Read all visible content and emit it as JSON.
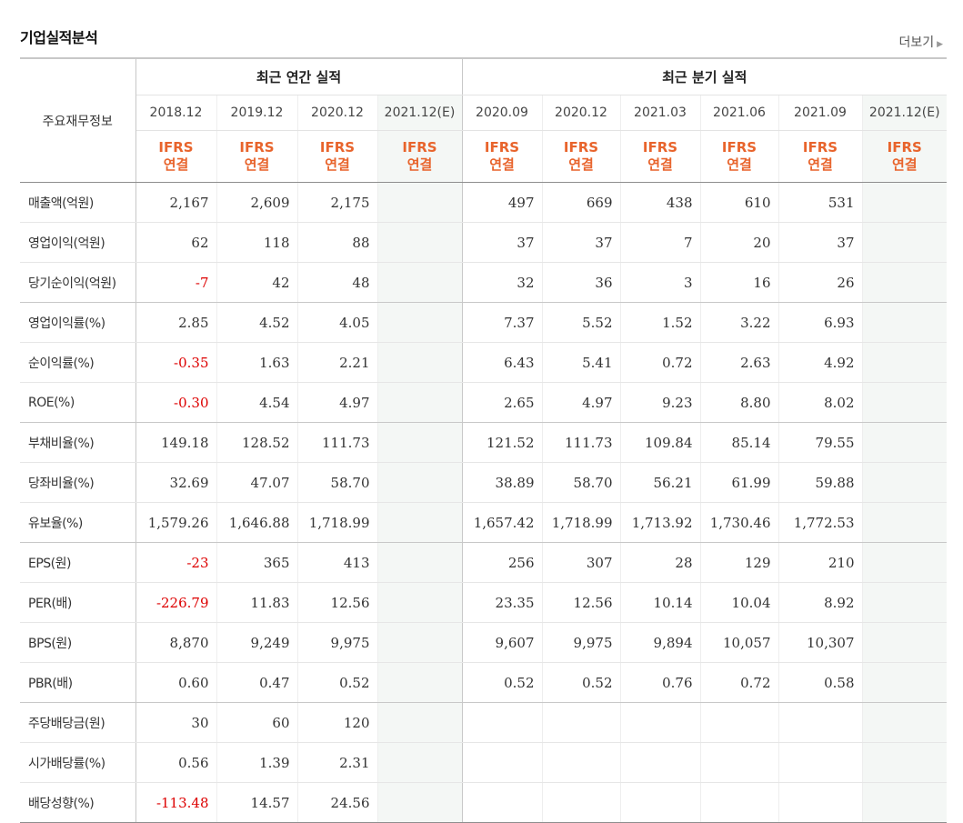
{
  "section_title": "기업실적분석",
  "more_label": "더보기",
  "header": {
    "label": "주요재무정보",
    "annual_group": "최근 연간 실적",
    "quarter_group": "최근 분기 실적",
    "annual_dates": [
      "2018.12",
      "2019.12",
      "2020.12",
      "2021.12(E)"
    ],
    "quarter_dates": [
      "2020.09",
      "2020.12",
      "2021.03",
      "2021.06",
      "2021.09",
      "2021.12(E)"
    ],
    "ifrs_line1": "IFRS",
    "ifrs_line2": "연결"
  },
  "negative_color": "#dd0000",
  "rows": [
    {
      "label": "매출액(억원)",
      "annual": [
        "2,167",
        "2,609",
        "2,175",
        ""
      ],
      "quarter": [
        "497",
        "669",
        "438",
        "610",
        "531",
        ""
      ]
    },
    {
      "label": "영업이익(억원)",
      "annual": [
        "62",
        "118",
        "88",
        ""
      ],
      "quarter": [
        "37",
        "37",
        "7",
        "20",
        "37",
        ""
      ]
    },
    {
      "label": "당기순이익(억원)",
      "annual": [
        "-7",
        "42",
        "48",
        ""
      ],
      "quarter": [
        "32",
        "36",
        "3",
        "16",
        "26",
        ""
      ]
    },
    {
      "label": "영업이익률(%)",
      "annual": [
        "2.85",
        "4.52",
        "4.05",
        ""
      ],
      "quarter": [
        "7.37",
        "5.52",
        "1.52",
        "3.22",
        "6.93",
        ""
      ]
    },
    {
      "label": "순이익률(%)",
      "annual": [
        "-0.35",
        "1.63",
        "2.21",
        ""
      ],
      "quarter": [
        "6.43",
        "5.41",
        "0.72",
        "2.63",
        "4.92",
        ""
      ]
    },
    {
      "label": "ROE(%)",
      "annual": [
        "-0.30",
        "4.54",
        "4.97",
        ""
      ],
      "quarter": [
        "2.65",
        "4.97",
        "9.23",
        "8.80",
        "8.02",
        ""
      ]
    },
    {
      "label": "부채비율(%)",
      "annual": [
        "149.18",
        "128.52",
        "111.73",
        ""
      ],
      "quarter": [
        "121.52",
        "111.73",
        "109.84",
        "85.14",
        "79.55",
        ""
      ]
    },
    {
      "label": "당좌비율(%)",
      "annual": [
        "32.69",
        "47.07",
        "58.70",
        ""
      ],
      "quarter": [
        "38.89",
        "58.70",
        "56.21",
        "61.99",
        "59.88",
        ""
      ]
    },
    {
      "label": "유보율(%)",
      "annual": [
        "1,579.26",
        "1,646.88",
        "1,718.99",
        ""
      ],
      "quarter": [
        "1,657.42",
        "1,718.99",
        "1,713.92",
        "1,730.46",
        "1,772.53",
        ""
      ]
    },
    {
      "label": "EPS(원)",
      "annual": [
        "-23",
        "365",
        "413",
        ""
      ],
      "quarter": [
        "256",
        "307",
        "28",
        "129",
        "210",
        ""
      ]
    },
    {
      "label": "PER(배)",
      "annual": [
        "-226.79",
        "11.83",
        "12.56",
        ""
      ],
      "quarter": [
        "23.35",
        "12.56",
        "10.14",
        "10.04",
        "8.92",
        ""
      ]
    },
    {
      "label": "BPS(원)",
      "annual": [
        "8,870",
        "9,249",
        "9,975",
        ""
      ],
      "quarter": [
        "9,607",
        "9,975",
        "9,894",
        "10,057",
        "10,307",
        ""
      ]
    },
    {
      "label": "PBR(배)",
      "annual": [
        "0.60",
        "0.47",
        "0.52",
        ""
      ],
      "quarter": [
        "0.52",
        "0.52",
        "0.76",
        "0.72",
        "0.58",
        ""
      ]
    },
    {
      "label": "주당배당금(원)",
      "annual": [
        "30",
        "60",
        "120",
        ""
      ],
      "quarter": [
        "",
        "",
        "",
        "",
        "",
        ""
      ]
    },
    {
      "label": "시가배당률(%)",
      "annual": [
        "0.56",
        "1.39",
        "2.31",
        ""
      ],
      "quarter": [
        "",
        "",
        "",
        "",
        "",
        ""
      ]
    },
    {
      "label": "배당성향(%)",
      "annual": [
        "-113.48",
        "14.57",
        "24.56",
        ""
      ],
      "quarter": [
        "",
        "",
        "",
        "",
        "",
        ""
      ]
    }
  ]
}
